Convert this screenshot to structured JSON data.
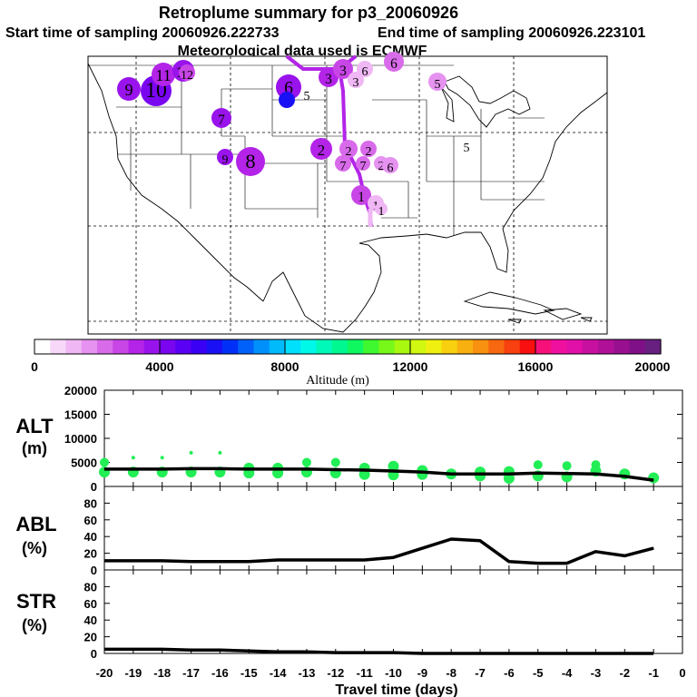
{
  "header": {
    "title": "Retroplume summary for p3_20060926",
    "start_label": "Start time of sampling 20060926.222733",
    "end_label": "End time of sampling 20060926.223101",
    "met_label": "Meteorological data used is ECMWF"
  },
  "colorbar": {
    "ticks": [
      "0",
      "4000",
      "8000",
      "12000",
      "16000",
      "20000"
    ],
    "label": "Altitude (m)",
    "range": [
      0,
      20000
    ],
    "colors": [
      "#ffffff",
      "#f7d8f9",
      "#efb7f4",
      "#e592f0",
      "#d86bea",
      "#c846e6",
      "#b324e8",
      "#9913ec",
      "#7a06f0",
      "#5a00f5",
      "#3a00f5",
      "#1a10f5",
      "#0030f8",
      "#0060fa",
      "#0090fc",
      "#00bafc",
      "#00e0fc",
      "#00f8e8",
      "#00f8b8",
      "#00f890",
      "#10f860",
      "#40f830",
      "#78f818",
      "#a8f810",
      "#d0f810",
      "#f0f010",
      "#f8d010",
      "#f8b010",
      "#f89010",
      "#f86810",
      "#f84010",
      "#f81010",
      "#f8107a",
      "#f010a0",
      "#e010a8",
      "#c810a0",
      "#b01098",
      "#981090",
      "#801088",
      "#682080"
    ]
  },
  "map": {
    "markers": [
      {
        "label": "1",
        "color": "#c846e6"
      },
      {
        "label": "1",
        "color": "#efb7f4"
      },
      {
        "label": "1",
        "color": "#efb7f4"
      },
      {
        "label": "2",
        "color": "#b324e8"
      },
      {
        "label": "2",
        "color": "#d86bea"
      },
      {
        "label": "2",
        "color": "#d86bea"
      },
      {
        "label": "2",
        "color": "#e592f0"
      },
      {
        "label": "3",
        "color": "#b324e8"
      },
      {
        "label": "3",
        "color": "#c846e6"
      },
      {
        "label": "3",
        "color": "#efb7f4"
      },
      {
        "label": "5",
        "color": "#e592f0"
      },
      {
        "label": "5",
        "color": "#ffffff"
      },
      {
        "label": "5",
        "color": "#ffffff"
      },
      {
        "label": "6",
        "color": "#9913ec"
      },
      {
        "label": "6",
        "color": "#d86bea"
      },
      {
        "label": "6",
        "color": "#e592f0"
      },
      {
        "label": "6",
        "color": "#efb7f4"
      },
      {
        "label": "7",
        "color": "#9913ec"
      },
      {
        "label": "7",
        "color": "#d86bea"
      },
      {
        "label": "7",
        "color": "#d86bea"
      },
      {
        "label": "8",
        "color": "#b324e8"
      },
      {
        "label": "9",
        "color": "#9913ec"
      },
      {
        "label": "9",
        "color": "#9913ec"
      },
      {
        "label": "10",
        "color": "#7a06f0"
      },
      {
        "label": "11",
        "color": "#b324e8"
      },
      {
        "label": "12",
        "color": "#9913ec"
      },
      {
        "label": "12",
        "color": "#c846e6"
      }
    ]
  },
  "chart_data": [
    {
      "type": "line",
      "ylabel": "ALT\n(m)",
      "ylim": [
        0,
        20000
      ],
      "yticks": [
        "0",
        "5000",
        "10000",
        "15000",
        "20000"
      ],
      "x": [
        -20,
        -19,
        -18,
        -17,
        -16,
        -15,
        -14,
        -13,
        -12,
        -11,
        -10,
        -9,
        -8,
        -7,
        -6,
        -5,
        -4,
        -3,
        -2,
        -1
      ],
      "values": [
        3600,
        3600,
        3600,
        3700,
        3700,
        3600,
        3600,
        3600,
        3500,
        3400,
        3200,
        3000,
        2600,
        2600,
        2600,
        2800,
        2700,
        2600,
        2100,
        1300
      ],
      "scatter": {
        "name": "particle altitudes",
        "color": "#22ee55",
        "x": [
          -20,
          -20,
          -19,
          -19,
          -18,
          -18,
          -17,
          -17,
          -16,
          -16,
          -15,
          -15,
          -14,
          -14,
          -13,
          -13,
          -12,
          -12,
          -11,
          -11,
          -10,
          -10,
          -9,
          -9,
          -8,
          -7,
          -7,
          -6,
          -6,
          -5,
          -5,
          -4,
          -4,
          -3,
          -3,
          -2,
          -1
        ],
        "y": [
          5000,
          3000,
          6000,
          3000,
          6000,
          3000,
          7000,
          3000,
          7000,
          3000,
          3800,
          2800,
          3800,
          2800,
          5000,
          3000,
          5000,
          2800,
          3800,
          2500,
          4200,
          2400,
          3300,
          2500,
          2600,
          3000,
          2200,
          3100,
          1700,
          4500,
          2200,
          4300,
          2000,
          4500,
          3200,
          2600,
          1800
        ]
      }
    },
    {
      "type": "line",
      "ylabel": "ABL\n(%)",
      "ylim": [
        0,
        100
      ],
      "yticks": [
        "0",
        "20",
        "40",
        "60",
        "80"
      ],
      "x": [
        -20,
        -19,
        -18,
        -17,
        -16,
        -15,
        -14,
        -13,
        -12,
        -11,
        -10,
        -9,
        -8,
        -7,
        -6,
        -5,
        -4,
        -3,
        -2,
        -1
      ],
      "values": [
        11,
        11,
        11,
        10,
        10,
        10,
        12,
        12,
        12,
        12,
        15,
        26,
        37,
        35,
        10,
        8,
        8,
        22,
        17,
        26
      ]
    },
    {
      "type": "line",
      "ylabel": "STR\n(%)",
      "xlabel": "Travel time (days)",
      "ylim": [
        0,
        100
      ],
      "yticks": [
        "0",
        "20",
        "40",
        "60",
        "80"
      ],
      "xticks": [
        "-20",
        "-19",
        "-18",
        "-17",
        "-16",
        "-15",
        "-14",
        "-13",
        "-12",
        "-11",
        "-10",
        "-9",
        "-8",
        "-7",
        "-6",
        "-5",
        "-4",
        "-3",
        "-2",
        "-1",
        "0"
      ],
      "x": [
        -20,
        -19,
        -18,
        -17,
        -16,
        -15,
        -14,
        -13,
        -12,
        -11,
        -10,
        -9,
        -8,
        -7,
        -6,
        -5,
        -4,
        -3,
        -2,
        -1
      ],
      "values": [
        5,
        5,
        5,
        4,
        4,
        3,
        2,
        2,
        1,
        1,
        1,
        0,
        0,
        0,
        0,
        0,
        0,
        0,
        0,
        0
      ]
    }
  ]
}
